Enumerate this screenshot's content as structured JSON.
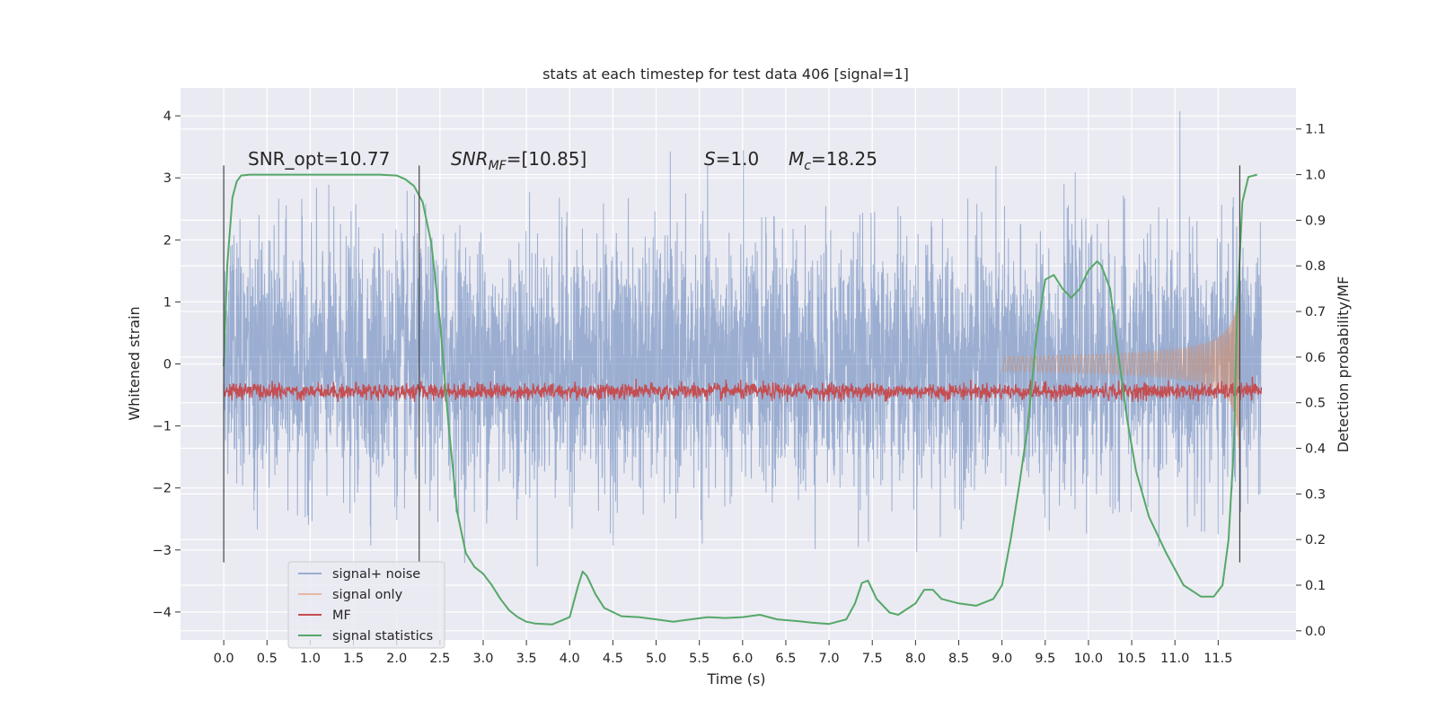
{
  "chart_data": {
    "type": "line",
    "title": "stats at each timestep for test data 406 [signal=1]",
    "xlabel": "Time (s)",
    "ylabel": "Whitened strain",
    "y2label": "Detection probability/MF",
    "xlim": [
      -0.5,
      12.4
    ],
    "ylim": [
      -4.45,
      4.45
    ],
    "y2lim": [
      -0.02,
      1.19
    ],
    "x_ticks": [
      "0.0",
      "0.5",
      "1.0",
      "1.5",
      "2.0",
      "2.5",
      "3.0",
      "3.5",
      "4.0",
      "4.5",
      "5.0",
      "5.5",
      "6.0",
      "6.5",
      "7.0",
      "7.5",
      "8.0",
      "8.5",
      "9.0",
      "9.5",
      "10.0",
      "10.5",
      "11.0",
      "11.5"
    ],
    "y_ticks": [
      "4",
      "3",
      "2",
      "1",
      "0",
      "−1",
      "−2",
      "−3",
      "−4"
    ],
    "y2_ticks": [
      "1.1",
      "1.0",
      "0.9",
      "0.8",
      "0.7",
      "0.6",
      "0.5",
      "0.4",
      "0.3",
      "0.2",
      "0.1",
      "0.0"
    ],
    "grid": true,
    "annotations": {
      "snr_opt": "SNR_opt=10.77",
      "snr_mf_italic": "SNR",
      "snr_mf_sub": "MF",
      "snr_mf_value": "=[10.85]",
      "s_italic": "S",
      "s_value": "=1.0",
      "mc_italic": "M",
      "mc_sub": "c",
      "mc_value": "=18.25"
    },
    "vlines_x": [
      0.0,
      2.26,
      11.75
    ],
    "legend": {
      "position": "lower-left",
      "entries": [
        "signal+ noise",
        "signal only",
        "MF",
        "signal statistics"
      ]
    },
    "colors": {
      "noise": "#4c72b0",
      "signal": "#dd8452",
      "mf": "#c44e52",
      "stat": "#55a868",
      "background": "#eaeaf2"
    },
    "series": [
      {
        "name": "signal+ noise",
        "axis": "left",
        "x_range": [
          0.0,
          12.0
        ],
        "summary": "dense whitened noise, bulk roughly ±2, extreme peaks from about −4.1 to 4.1"
      },
      {
        "name": "signal only",
        "axis": "left",
        "x_range": [
          9.0,
          11.75
        ],
        "summary": "chirp whose amplitude grows from about 0 to about 1.9 near 11.7 s"
      },
      {
        "name": "MF",
        "axis": "right",
        "x_range": [
          0.0,
          12.0
        ],
        "summary": "noisy level between about 0.5 and 0.55"
      },
      {
        "name": "signal statistics",
        "axis": "right",
        "x": [
          0.0,
          0.04,
          0.1,
          0.15,
          0.2,
          0.3,
          0.5,
          1.0,
          1.5,
          1.8,
          2.0,
          2.1,
          2.2,
          2.3,
          2.4,
          2.5,
          2.6,
          2.7,
          2.8,
          2.9,
          3.0,
          3.1,
          3.2,
          3.3,
          3.4,
          3.5,
          3.6,
          3.8,
          4.0,
          4.1,
          4.15,
          4.2,
          4.3,
          4.4,
          4.6,
          4.8,
          5.0,
          5.2,
          5.4,
          5.6,
          5.8,
          6.0,
          6.2,
          6.4,
          6.6,
          6.8,
          7.0,
          7.2,
          7.3,
          7.38,
          7.45,
          7.55,
          7.7,
          7.8,
          8.0,
          8.1,
          8.2,
          8.3,
          8.5,
          8.7,
          8.9,
          9.0,
          9.1,
          9.2,
          9.3,
          9.4,
          9.5,
          9.6,
          9.7,
          9.8,
          9.9,
          10.0,
          10.1,
          10.15,
          10.25,
          10.35,
          10.45,
          10.55,
          10.7,
          10.9,
          11.1,
          11.3,
          11.45,
          11.55,
          11.62,
          11.68,
          11.72,
          11.78,
          11.85,
          11.95
        ],
        "values": [
          0.58,
          0.8,
          0.95,
          0.985,
          0.998,
          1.0,
          1.0,
          1.0,
          1.0,
          1.0,
          0.998,
          0.99,
          0.975,
          0.94,
          0.85,
          0.68,
          0.45,
          0.26,
          0.17,
          0.14,
          0.125,
          0.1,
          0.07,
          0.045,
          0.03,
          0.02,
          0.016,
          0.014,
          0.03,
          0.1,
          0.13,
          0.12,
          0.08,
          0.05,
          0.032,
          0.03,
          0.025,
          0.02,
          0.025,
          0.03,
          0.028,
          0.03,
          0.035,
          0.025,
          0.022,
          0.018,
          0.015,
          0.025,
          0.06,
          0.105,
          0.11,
          0.07,
          0.04,
          0.035,
          0.06,
          0.09,
          0.09,
          0.07,
          0.06,
          0.055,
          0.07,
          0.1,
          0.2,
          0.32,
          0.45,
          0.65,
          0.77,
          0.78,
          0.75,
          0.73,
          0.75,
          0.79,
          0.81,
          0.8,
          0.75,
          0.6,
          0.46,
          0.35,
          0.25,
          0.17,
          0.1,
          0.075,
          0.075,
          0.1,
          0.2,
          0.4,
          0.7,
          0.94,
          0.995,
          1.0
        ]
      }
    ]
  }
}
